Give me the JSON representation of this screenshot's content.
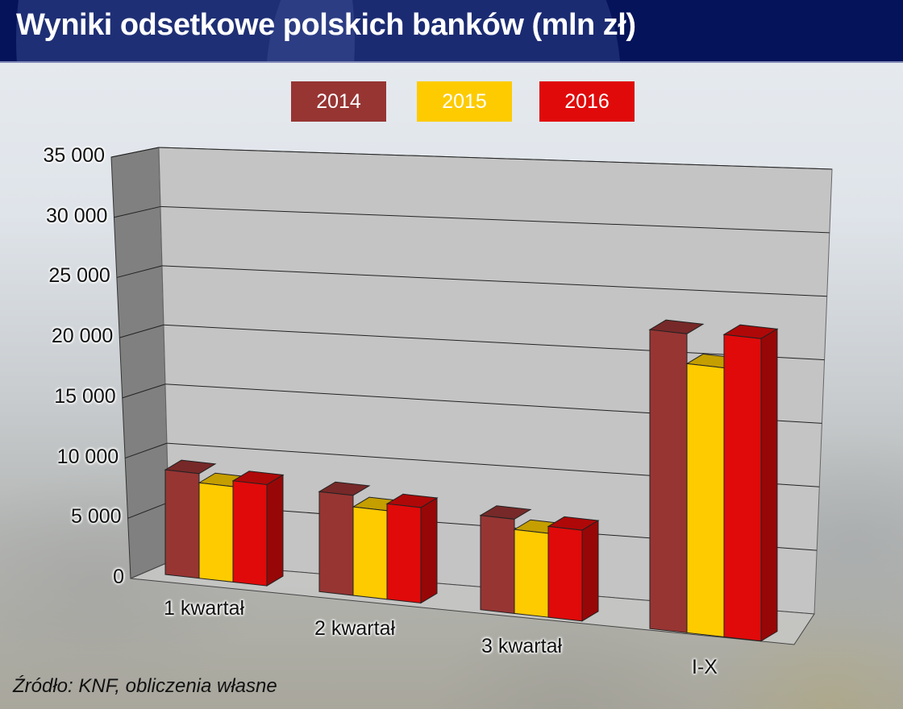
{
  "header": {
    "title": "Wyniki odsetkowe polskich banków (mln zł)"
  },
  "legend": [
    {
      "label": "2014",
      "color": "#973533"
    },
    {
      "label": "2015",
      "color": "#fdcb00"
    },
    {
      "label": "2016",
      "color": "#e00a0a"
    }
  ],
  "source": "Źródło: KNF, obliczenia własne",
  "chart_data": {
    "type": "bar",
    "title": "Wyniki odsetkowe polskich banków (mln zł)",
    "xlabel": "",
    "ylabel": "mln zł",
    "categories": [
      "1 kwartał",
      "2 kwartał",
      "3 kwartał",
      "I-X"
    ],
    "series": [
      {
        "name": "2014",
        "color": "#973533",
        "values": [
          9100,
          8700,
          8200,
          26000
        ]
      },
      {
        "name": "2015",
        "color": "#fdcb00",
        "values": [
          8300,
          7700,
          7300,
          23400
        ]
      },
      {
        "name": "2016",
        "color": "#e00a0a",
        "values": [
          8800,
          8300,
          7900,
          26300
        ]
      }
    ],
    "y_ticks": [
      0,
      5000,
      10000,
      15000,
      20000,
      25000,
      30000,
      35000
    ],
    "y_tick_labels": [
      "0",
      "5 000",
      "10 000",
      "15 000",
      "20 000",
      "25 000",
      "30 000",
      "35 000"
    ],
    "ylim": [
      0,
      35000
    ],
    "grid": true,
    "style": "3d-clustered",
    "legend_position": "top"
  }
}
